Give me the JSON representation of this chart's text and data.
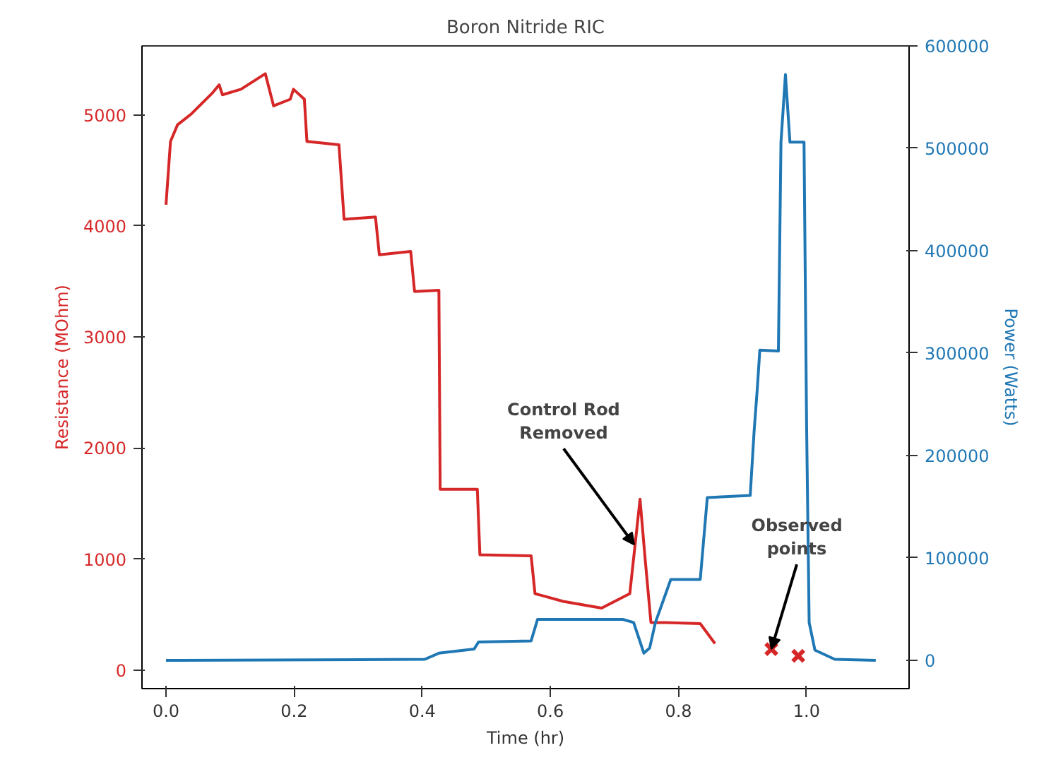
{
  "chart_data": {
    "type": "line",
    "title": "Boron Nitride RIC",
    "xlabel": "Time (hr)",
    "ylabel": "Resistance (MOhm)",
    "y2label": "Power (Watts)",
    "xlim": [
      -0.0375,
      1.16
    ],
    "xticks": [
      {
        "value": 0,
        "label": "0.0"
      },
      {
        "value": 0.2,
        "label": "0.2"
      },
      {
        "value": 0.4,
        "label": "0.4"
      },
      {
        "value": 0.6,
        "label": "0.6"
      },
      {
        "value": 0.8,
        "label": "0.8"
      },
      {
        "value": 1,
        "label": "1.0"
      }
    ],
    "ylim": [
      -165,
      5620
    ],
    "yticks": [
      0,
      1000,
      2000,
      3000,
      4000,
      5000
    ],
    "y2lim": [
      -27600,
      600000
    ],
    "y2ticks": [
      0,
      100000,
      200000,
      300000,
      400000,
      500000,
      600000
    ],
    "grid": false,
    "line_style": "solid",
    "series": [
      {
        "axis": "y",
        "color": "#d62728",
        "x": [
          0,
          0.007,
          0.018,
          0.04,
          0.073,
          0.083,
          0.088,
          0.117,
          0.155,
          0.168,
          0.194,
          0.199,
          0.216,
          0.22,
          0.27,
          0.278,
          0.327,
          0.333,
          0.382,
          0.388,
          0.426,
          0.428,
          0.486,
          0.49,
          0.57,
          0.576,
          0.62,
          0.68,
          0.724,
          0.74,
          0.748,
          0.757,
          0.78,
          0.834,
          0.857
        ],
        "values": [
          4190,
          4760,
          4910,
          5010,
          5200,
          5270,
          5180,
          5230,
          5370,
          5080,
          5140,
          5230,
          5140,
          4760,
          4730,
          4060,
          4080,
          3740,
          3770,
          3410,
          3420,
          1630,
          1630,
          1040,
          1030,
          690,
          620,
          560,
          690,
          1540,
          1000,
          430,
          430,
          420,
          240
        ]
      },
      {
        "axis": "y2",
        "color": "#1f77b4",
        "x": [
          0,
          0.404,
          0.426,
          0.481,
          0.488,
          0.57,
          0.58,
          0.713,
          0.73,
          0.746,
          0.755,
          0.764,
          0.78,
          0.788,
          0.834,
          0.845,
          0.912,
          0.918,
          0.923,
          0.927,
          0.956,
          0.96,
          0.967,
          0.974,
          0.996,
          1.0,
          1.004,
          1.013,
          1.044,
          1.108
        ],
        "values": [
          0,
          1000,
          7000,
          11000,
          18000,
          19000,
          40000,
          40000,
          37000,
          7000,
          12000,
          37000,
          65000,
          79000,
          79000,
          159000,
          161000,
          223000,
          265000,
          303000,
          302000,
          506000,
          572000,
          506000,
          506000,
          230000,
          37000,
          10000,
          1000,
          0
        ]
      },
      {
        "type": "scatter",
        "axis": "y",
        "color": "#d62728",
        "marker": "cross",
        "x": [
          0.945,
          0.987
        ],
        "values": [
          190,
          130
        ]
      }
    ],
    "annotations": [
      {
        "text": "Control Rod\nRemoved",
        "x": 0.731,
        "y": 1130
      },
      {
        "text": "Observed\npoints",
        "x": 0.945,
        "y": 190
      }
    ]
  }
}
